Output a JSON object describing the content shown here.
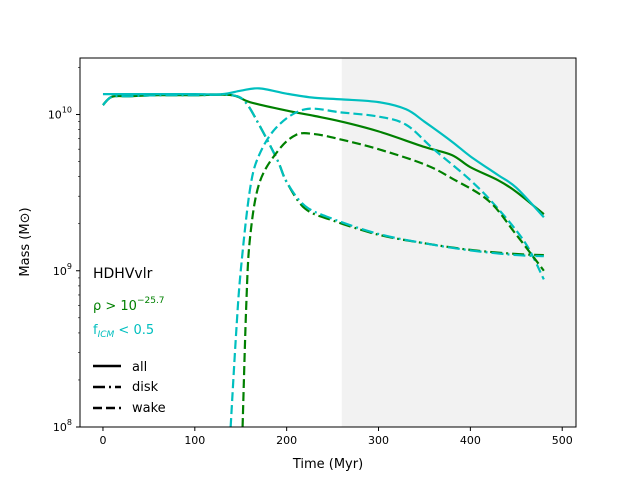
{
  "chart_data": {
    "type": "line",
    "title": "",
    "xlabel": "Time (Myr)",
    "ylabel": "Mass (M⊙)",
    "xlim": [
      -25,
      515
    ],
    "ylim": [
      100000000.0,
      23000000000.0
    ],
    "yscale": "log",
    "grid": false,
    "x_ticks": [
      0,
      100,
      200,
      300,
      400,
      500
    ],
    "x_tick_labels": [
      "0",
      "100",
      "200",
      "300",
      "400",
      "500"
    ],
    "y_ticks": [
      100000000.0,
      1000000000.0,
      10000000000.0
    ],
    "y_tick_labels": [
      {
        "base": "10",
        "exp": "8"
      },
      {
        "base": "10",
        "exp": "9"
      },
      {
        "base": "10",
        "exp": "10"
      }
    ],
    "shaded_region": {
      "x": [
        260,
        515
      ],
      "color": "#f2f2f2"
    },
    "annotations": [
      {
        "text": "HDHVvlr",
        "color": "#000000"
      },
      {
        "text_base": "ρ > 10",
        "text_exp": "−25.7",
        "color": "#008000"
      },
      {
        "text_base": "f",
        "text_sub": "ICM",
        "text_rest": " < 0.5",
        "color": "#00bfbf"
      }
    ],
    "legend": {
      "placement": "lower-left",
      "entries": [
        {
          "label": "all",
          "style": "solid"
        },
        {
          "label": "disk",
          "style": "dashdot"
        },
        {
          "label": "wake",
          "style": "dashed"
        }
      ]
    },
    "series": [
      {
        "group": "rho",
        "kind": "all",
        "color": "#008000",
        "style": "solid",
        "x": [
          0,
          10,
          30,
          60,
          100,
          140,
          160,
          200,
          230,
          260,
          300,
          350,
          380,
          400,
          430,
          450,
          480
        ],
        "y": [
          11500000000.0,
          13000000000.0,
          13100000000.0,
          13300000000.0,
          13300000000.0,
          13300000000.0,
          12000000000.0,
          10600000000.0,
          9800000000.0,
          9000000000.0,
          7800000000.0,
          6200000000.0,
          5500000000.0,
          4600000000.0,
          3800000000.0,
          3200000000.0,
          2300000000.0
        ]
      },
      {
        "group": "ficm",
        "kind": "all",
        "color": "#00bfbf",
        "style": "solid",
        "x": [
          0,
          50,
          100,
          130,
          150,
          170,
          200,
          230,
          260,
          300,
          330,
          350,
          380,
          400,
          430,
          450,
          480
        ],
        "y": [
          13500000000.0,
          13500000000.0,
          13500000000.0,
          13500000000.0,
          14200000000.0,
          14700000000.0,
          13600000000.0,
          12800000000.0,
          12500000000.0,
          12000000000.0,
          10800000000.0,
          9000000000.0,
          6700000000.0,
          5400000000.0,
          4100000000.0,
          3400000000.0,
          2200000000.0
        ]
      },
      {
        "group": "rho",
        "kind": "disk",
        "color": "#008000",
        "style": "dashdot",
        "x": [
          0,
          10,
          30,
          60,
          100,
          140,
          155,
          170,
          190,
          200,
          220,
          250,
          300,
          350,
          400,
          450,
          480
        ],
        "y": [
          11500000000.0,
          13000000000.0,
          13100000000.0,
          13300000000.0,
          13300000000.0,
          13300000000.0,
          12000000000.0,
          8600000000.0,
          5100000000.0,
          3700000000.0,
          2500000000.0,
          2100000000.0,
          1700000000.0,
          1500000000.0,
          1360000000.0,
          1280000000.0,
          1260000000.0
        ]
      },
      {
        "group": "ficm",
        "kind": "disk",
        "color": "#00bfbf",
        "style": "dashdot",
        "x": [
          0,
          10,
          30,
          60,
          100,
          140,
          155,
          170,
          190,
          200,
          220,
          250,
          300,
          350,
          400,
          450,
          480
        ],
        "y": [
          11500000000.0,
          13000000000.0,
          13100000000.0,
          13300000000.0,
          13300000000.0,
          13300000000.0,
          12000000000.0,
          8600000000.0,
          5100000000.0,
          3700000000.0,
          2600000000.0,
          2150000000.0,
          1720000000.0,
          1500000000.0,
          1350000000.0,
          1260000000.0,
          1240000000.0
        ]
      },
      {
        "group": "ficm",
        "kind": "wake",
        "color": "#00bfbf",
        "style": "dashed",
        "x": [
          139,
          145,
          150,
          160,
          170,
          190,
          220,
          260,
          300,
          330,
          360,
          400,
          430,
          460,
          480
        ],
        "y": [
          100000000.0,
          400000000.0,
          1000000000.0,
          3300000000.0,
          5500000000.0,
          8400000000.0,
          10800000000.0,
          10300000000.0,
          9700000000.0,
          8600000000.0,
          6000000000.0,
          3800000000.0,
          2500000000.0,
          1500000000.0,
          880000000.0
        ]
      },
      {
        "group": "rho",
        "kind": "wake",
        "color": "#008000",
        "style": "dashed",
        "x": [
          152,
          156,
          160,
          170,
          190,
          210,
          230,
          260,
          300,
          350,
          380,
          420,
          450,
          480
        ],
        "y": [
          100000000.0,
          600000000.0,
          1600000000.0,
          3600000000.0,
          5800000000.0,
          7400000000.0,
          7500000000.0,
          6900000000.0,
          6000000000.0,
          4800000000.0,
          3900000000.0,
          2800000000.0,
          1700000000.0,
          1000000000.0
        ]
      }
    ]
  }
}
